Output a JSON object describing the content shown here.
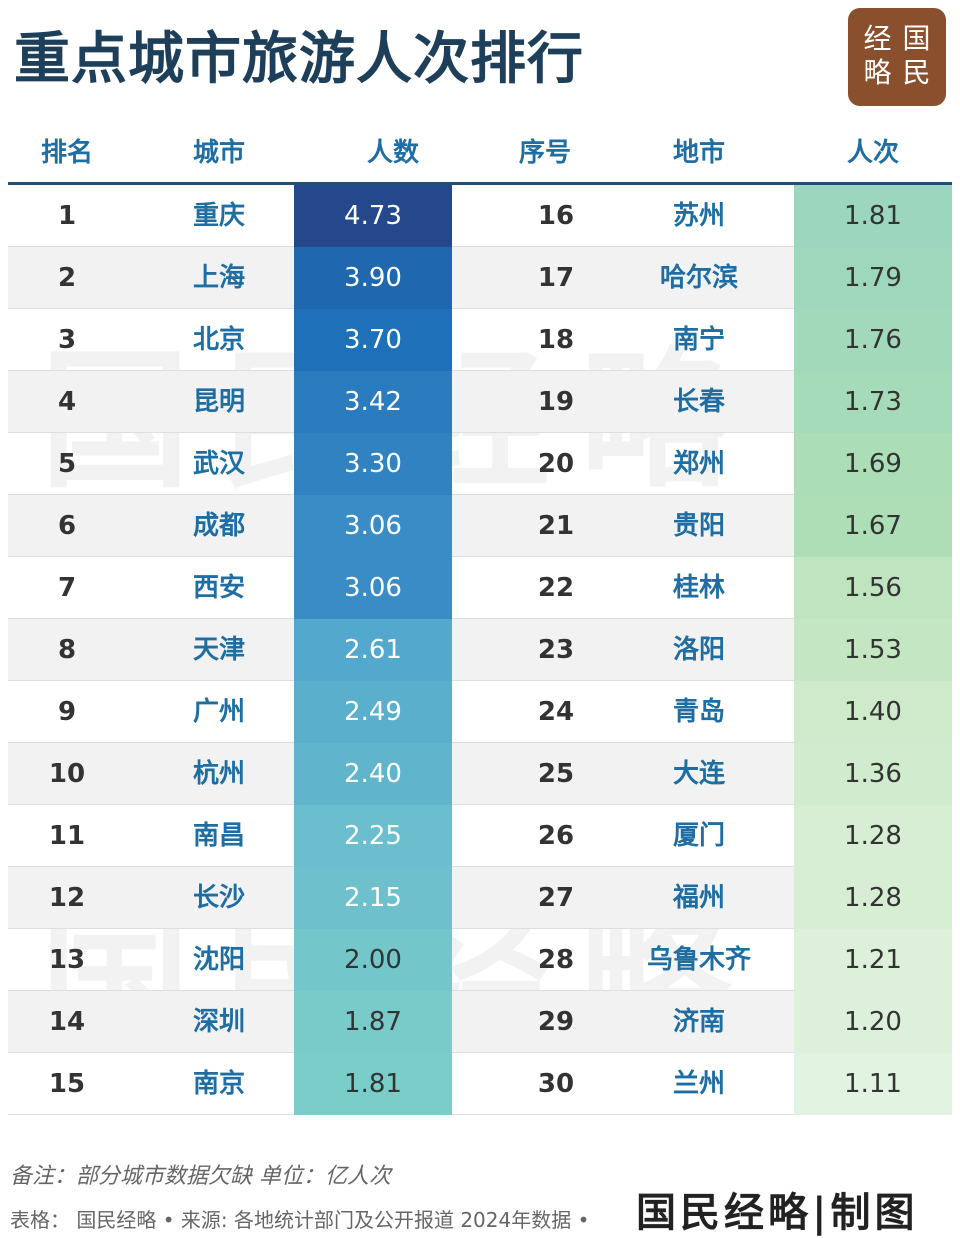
{
  "title": "重点城市旅游人次排行",
  "logo": [
    "经",
    "国",
    "略",
    "民"
  ],
  "headers": {
    "rank": "排名",
    "city": "城市",
    "value": "人数",
    "rank2": "序号",
    "city2": "地市",
    "value2": "人次"
  },
  "colors": {
    "title": "#1e3f5a",
    "header": "#1f6ea3",
    "city": "#1f6ea3",
    "logo": "#8a4f2c"
  },
  "chart_data": {
    "type": "table",
    "columns": [
      "排名",
      "城市",
      "人数",
      "序号",
      "地市",
      "人次"
    ],
    "rows": [
      {
        "rank": "1",
        "city": "重庆",
        "value": 4.73
      },
      {
        "rank": "2",
        "city": "上海",
        "value": 3.9
      },
      {
        "rank": "3",
        "city": "北京",
        "value": 3.7
      },
      {
        "rank": "4",
        "city": "昆明",
        "value": 3.42
      },
      {
        "rank": "5",
        "city": "武汉",
        "value": 3.3
      },
      {
        "rank": "6",
        "city": "成都",
        "value": 3.06
      },
      {
        "rank": "7",
        "city": "西安",
        "value": 3.06
      },
      {
        "rank": "8",
        "city": "天津",
        "value": 2.61
      },
      {
        "rank": "9",
        "city": "广州",
        "value": 2.49
      },
      {
        "rank": "10",
        "city": "杭州",
        "value": 2.4
      },
      {
        "rank": "11",
        "city": "南昌",
        "value": 2.25
      },
      {
        "rank": "12",
        "city": "长沙",
        "value": 2.15
      },
      {
        "rank": "13",
        "city": "沈阳",
        "value": 2.0
      },
      {
        "rank": "14",
        "city": "深圳",
        "value": 1.87
      },
      {
        "rank": "15",
        "city": "南京",
        "value": 1.81
      },
      {
        "rank": "16",
        "city": "苏州",
        "value": 1.81
      },
      {
        "rank": "17",
        "city": "哈尔滨",
        "value": 1.79
      },
      {
        "rank": "18",
        "city": "南宁",
        "value": 1.76
      },
      {
        "rank": "19",
        "city": "长春",
        "value": 1.73
      },
      {
        "rank": "20",
        "city": "郑州",
        "value": 1.69
      },
      {
        "rank": "21",
        "city": "贵阳",
        "value": 1.67
      },
      {
        "rank": "22",
        "city": "桂林",
        "value": 1.56
      },
      {
        "rank": "23",
        "city": "洛阳",
        "value": 1.53
      },
      {
        "rank": "24",
        "city": "青岛",
        "value": 1.4
      },
      {
        "rank": "25",
        "city": "大连",
        "value": 1.36
      },
      {
        "rank": "26",
        "city": "厦门",
        "value": 1.28
      },
      {
        "rank": "27",
        "city": "福州",
        "value": 1.28
      },
      {
        "rank": "28",
        "city": "乌鲁木齐",
        "value": 1.21
      },
      {
        "rank": "29",
        "city": "济南",
        "value": 1.2
      },
      {
        "rank": "30",
        "city": "兰州",
        "value": 1.11
      }
    ]
  },
  "footer": {
    "notes": "备注：部分城市数据欠缺 单位：亿人次",
    "source": "表格：  国民经略 • 来源: 各地统计部门及公开报道 2024年数据 •",
    "brand": "国民经略|制图"
  },
  "watermark": "国民经略"
}
